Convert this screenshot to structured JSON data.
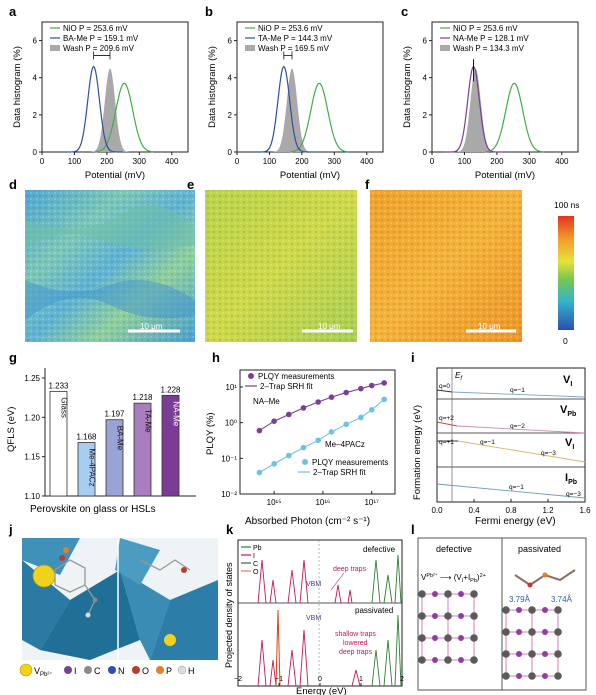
{
  "figure": {
    "panel_labels": [
      "a",
      "b",
      "c",
      "d",
      "e",
      "f",
      "g",
      "h",
      "i",
      "j",
      "k",
      "l"
    ]
  },
  "hist_panels": [
    {
      "label": "a",
      "ylabel": "Data histogram (%)",
      "xlabel": "Potential (mV)",
      "xticks": [
        "0",
        "100",
        "200",
        "300",
        "400"
      ],
      "yticks": [
        "0",
        "2",
        "4",
        "6"
      ],
      "legend": [
        "NiO P = 253.6 mV",
        "BA-Me P = 159.1 mV",
        "Wash P = 209.6 mV"
      ]
    },
    {
      "label": "b",
      "ylabel": "Data histogram (%)",
      "xlabel": "Potential (mV)",
      "xticks": [
        "0",
        "100",
        "200",
        "300",
        "400"
      ],
      "yticks": [
        "0",
        "2",
        "4",
        "6"
      ],
      "legend": [
        "NiO P = 253.6 mV",
        "TA-Me P = 144.3 mV",
        "Wash P = 169.5 mV"
      ]
    },
    {
      "label": "c",
      "ylabel": "Data histogram (%)",
      "xlabel": "Potential (mV)",
      "xticks": [
        "0",
        "100",
        "200",
        "300",
        "400"
      ],
      "yticks": [
        "0",
        "2",
        "4",
        "6"
      ],
      "legend": [
        "NiO P = 253.6 mV",
        "NA-Me P = 128.1 mV",
        "Wash P = 134.3 mV"
      ]
    }
  ],
  "maps": {
    "scalebar": "10 μm",
    "colorbar_top": "100 ns",
    "colorbar_bottom": "0"
  },
  "panel_g": {
    "ylabel": "QFLS (eV)",
    "xlabel": "Perovskite on glass or HSLs",
    "yticks": [
      "1.10",
      "1.15",
      "1.20",
      "1.25"
    ]
  },
  "panel_h": {
    "ylabel": "PLQY (%)",
    "xlabel": "Absorbed Photon (cm⁻² s⁻¹)",
    "legend_top": [
      "PLQY measurements",
      "2–Trap SRH fit"
    ],
    "label_top": "NA–Me",
    "label_bottom": "Me–4PACz",
    "legend_bottom": [
      "PLQY measurements",
      "2–Trap SRH fit"
    ],
    "yticks": [
      "10⁻²",
      "10⁻¹",
      "10⁰",
      "10¹"
    ],
    "xticks": [
      "10¹⁵",
      "10¹⁶",
      "10¹⁷"
    ]
  },
  "panel_i": {
    "ylabel": "Formation energy (eV)",
    "xlabel": "Fermi energy (eV)",
    "xticks": [
      "0.0",
      "0.4",
      "0.8",
      "1.2",
      "1.6"
    ],
    "ef": "E",
    "ef_sub": "f",
    "sub_labels": [
      {
        "name": "V",
        "sub": "I",
        "q": [
          "q=0",
          "q=−1"
        ]
      },
      {
        "name": "V",
        "sub": "Pb",
        "q": [
          "q=+2",
          "q=−2"
        ]
      },
      {
        "name": "V",
        "sub": "I",
        "q": [
          "q=+1",
          "q=−1",
          "q=−3"
        ]
      },
      {
        "name": "I",
        "sub": "Pb",
        "q": [
          "q=−1",
          "q=−3"
        ]
      }
    ]
  },
  "panel_j": {
    "legend": [
      "V",
      "Pb²⁺",
      "I",
      "C",
      "N",
      "O",
      "P",
      "H"
    ]
  },
  "panel_k": {
    "ylabel": "Projected density of states",
    "xlabel": "Energy (eV)",
    "xticks": [
      "−2",
      "−1",
      "0",
      "1",
      "2"
    ],
    "legend": [
      "Pb",
      "I",
      "C",
      "O"
    ],
    "top_title": "defective",
    "top_labels": [
      "VBM",
      "deep traps"
    ],
    "bottom_title": "passivated",
    "bottom_labels": [
      "VBM",
      "shallow traps",
      "lowered",
      "deep traps"
    ]
  },
  "panel_l": {
    "left_title": "defective",
    "right_title": "passivated",
    "equation": "V",
    "dist1": "3.79Å",
    "dist2": "3.74Å"
  },
  "chart_data": [
    {
      "type": "bar",
      "panel": "g",
      "categories": [
        "Glass",
        "Me-4PACz",
        "BA-Me",
        "TA-Me",
        "NA-Me"
      ],
      "values": [
        1.233,
        1.168,
        1.197,
        1.218,
        1.228
      ],
      "value_labels": [
        "1.233",
        "1.168",
        "1.197",
        "1.218",
        "1.228"
      ],
      "ylim": [
        1.1,
        1.25
      ],
      "colors": [
        "#ffffff",
        "#a9cdf0",
        "#9aa3d6",
        "#a97ebf",
        "#7b3c96"
      ]
    },
    {
      "type": "scatter",
      "panel": "h",
      "log_x": true,
      "log_y": true,
      "xlim": [
        200000000000000.0,
        3e+17
      ],
      "ylim": [
        0.01,
        30
      ],
      "series": [
        {
          "name": "NA–Me",
          "x": [
            500000000000000.0,
            1000000000000000.0,
            2000000000000000.0,
            4000000000000000.0,
            8000000000000000.0,
            1.5e+16,
            3e+16,
            6e+16,
            1e+17,
            1.8e+17
          ],
          "y": [
            0.6,
            1.1,
            1.7,
            2.6,
            3.8,
            5.2,
            7.0,
            9.0,
            11.0,
            13.0
          ]
        },
        {
          "name": "Me–4PACz",
          "x": [
            500000000000000.0,
            1000000000000000.0,
            2000000000000000.0,
            4000000000000000.0,
            8000000000000000.0,
            1.5e+16,
            3e+16,
            6e+16,
            1e+17,
            1.8e+17
          ],
          "y": [
            0.04,
            0.07,
            0.12,
            0.2,
            0.32,
            0.55,
            0.9,
            1.4,
            2.3,
            4.5
          ]
        }
      ]
    }
  ]
}
